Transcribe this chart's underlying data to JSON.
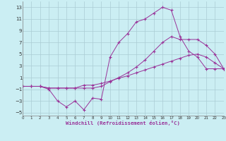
{
  "xlabel": "Windchill (Refroidissement éolien,°C)",
  "background_color": "#cbeef3",
  "grid_color": "#aaccd4",
  "line_color": "#993399",
  "xlim": [
    0,
    23
  ],
  "ylim": [
    -5.5,
    14.0
  ],
  "xticks": [
    0,
    1,
    2,
    3,
    4,
    5,
    6,
    7,
    8,
    9,
    10,
    11,
    12,
    13,
    14,
    15,
    16,
    17,
    18,
    19,
    20,
    21,
    22,
    23
  ],
  "yticks": [
    -5,
    -3,
    -1,
    1,
    3,
    5,
    7,
    9,
    11,
    13
  ],
  "series": [
    {
      "x": [
        0,
        1,
        2,
        3,
        4,
        5,
        6,
        7,
        8,
        9,
        10,
        11,
        12,
        13,
        14,
        15,
        16,
        17,
        18,
        19,
        20,
        21,
        22,
        23
      ],
      "y": [
        -0.5,
        -0.5,
        -0.5,
        -0.8,
        -0.8,
        -0.8,
        -0.8,
        -0.3,
        -0.3,
        0.0,
        0.4,
        0.9,
        1.3,
        1.8,
        2.3,
        2.8,
        3.3,
        3.8,
        4.3,
        4.8,
        5.0,
        4.5,
        3.5,
        2.5
      ]
    },
    {
      "x": [
        0,
        1,
        2,
        3,
        4,
        5,
        6,
        7,
        8,
        9,
        10,
        11,
        12,
        13,
        14,
        15,
        16,
        17,
        18,
        19,
        20,
        21,
        22,
        23
      ],
      "y": [
        -0.5,
        -0.5,
        -0.5,
        -0.8,
        -0.8,
        -0.8,
        -0.8,
        -0.8,
        -0.8,
        -0.5,
        0.3,
        1.0,
        1.8,
        2.8,
        4.0,
        5.5,
        7.0,
        8.0,
        7.5,
        7.5,
        7.5,
        6.5,
        5.0,
        2.5
      ]
    },
    {
      "x": [
        0,
        1,
        2,
        3,
        4,
        5,
        6,
        7,
        8,
        9,
        10,
        11,
        12,
        13,
        14,
        15,
        16,
        17,
        18,
        19,
        20,
        21,
        22,
        23
      ],
      "y": [
        -0.5,
        -0.5,
        -0.5,
        -1.0,
        -3.0,
        -4.0,
        -3.0,
        -4.5,
        -2.5,
        -2.7,
        4.5,
        7.0,
        8.5,
        10.5,
        11.0,
        12.0,
        13.0,
        12.5,
        8.0,
        5.5,
        4.5,
        2.5,
        2.5,
        2.5
      ]
    }
  ]
}
